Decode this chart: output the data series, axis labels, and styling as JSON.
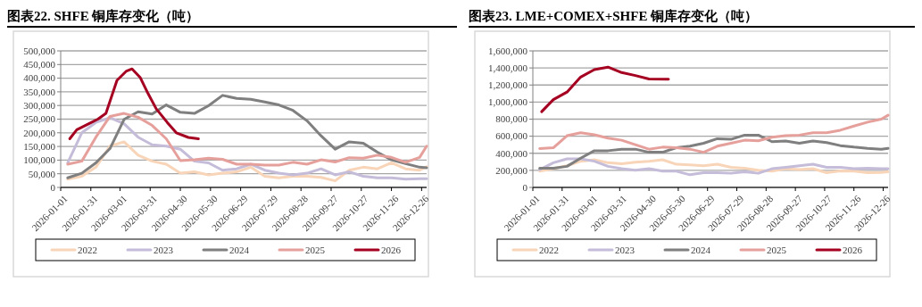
{
  "chart_data": [
    {
      "type": "line",
      "title": "图表22.  SHFE 铜库存变化（吨）",
      "grid": "y",
      "legend": "bottom",
      "line_style": "solid",
      "x": [
        "2026-01-08",
        "2026-01-22",
        "2026-02-05",
        "2026-02-19",
        "2026-03-05",
        "2026-03-19",
        "2026-04-02",
        "2026-04-16",
        "2026-04-30",
        "2026-05-14",
        "2026-05-28",
        "2026-06-11",
        "2026-06-25",
        "2026-07-09",
        "2026-07-23",
        "2026-08-06",
        "2026-08-20",
        "2026-09-03",
        "2026-09-17",
        "2026-10-01",
        "2026-10-15",
        "2026-10-29",
        "2026-11-12",
        "2026-11-26",
        "2026-12-10",
        "2026-12-24",
        "2026-12-31"
      ],
      "xlim": [
        "2026-01-01",
        "2026-12-31"
      ],
      "xticks": [
        "2026-01-01",
        "2026-01-31",
        "2026-03-01",
        "2026-03-31",
        "2026-04-30",
        "2026-05-30",
        "2026-06-29",
        "2026-07-29",
        "2026-08-28",
        "2026-09-27",
        "2026-10-27",
        "2026-11-26",
        "2026-12-26"
      ],
      "ylim": [
        0,
        500000
      ],
      "yticks": [
        {
          "value": 0,
          "label": "0"
        },
        {
          "value": 50000,
          "label": "50,000"
        },
        {
          "value": 100000,
          "label": "100,000"
        },
        {
          "value": 150000,
          "label": "150,000"
        },
        {
          "value": 200000,
          "label": "200,000"
        },
        {
          "value": 250000,
          "label": "250,000"
        },
        {
          "value": 300000,
          "label": "300,000"
        },
        {
          "value": 350000,
          "label": "350,000"
        },
        {
          "value": 400000,
          "label": "400,000"
        },
        {
          "value": 450000,
          "label": "450,000"
        },
        {
          "value": 500000,
          "label": "500,000"
        }
      ],
      "series": [
        {
          "name": "2022",
          "color": "#f8d5b8",
          "values": [
            30000,
            41000,
            74000,
            151000,
            167000,
            118000,
            96000,
            85000,
            52000,
            57000,
            46000,
            52000,
            57000,
            74000,
            41000,
            35000,
            41000,
            41000,
            37000,
            24000,
            63000,
            74000,
            68000,
            90000,
            68000,
            63000,
            76000
          ]
        },
        {
          "name": "2023",
          "color": "#c4bcd8",
          "values": [
            90000,
            200000,
            238000,
            255000,
            233000,
            184000,
            156000,
            151000,
            140000,
            96000,
            90000,
            63000,
            68000,
            85000,
            63000,
            52000,
            46000,
            52000,
            68000,
            46000,
            57000,
            41000,
            35000,
            35000,
            30000,
            32000,
            32000
          ]
        },
        {
          "name": "2024",
          "color": "#7f7f7f",
          "values": [
            35000,
            52000,
            90000,
            142000,
            249000,
            277000,
            269000,
            302000,
            275000,
            271000,
            299000,
            337000,
            326000,
            323000,
            313000,
            302000,
            282000,
            244000,
            189000,
            140000,
            167000,
            162000,
            129000,
            101000,
            87000,
            74000,
            72000
          ]
        },
        {
          "name": "2025",
          "color": "#e6a09c",
          "values": [
            85000,
            96000,
            184000,
            260000,
            271000,
            257000,
            227000,
            178000,
            98000,
            101000,
            107000,
            103000,
            85000,
            85000,
            82000,
            82000,
            92000,
            85000,
            101000,
            93000,
            109000,
            107000,
            118000,
            110000,
            92000,
            110000,
            151000
          ]
        },
        {
          "name": "2026",
          "color": "#a50021",
          "x": [
            "2026-01-10",
            "2026-01-17",
            "2026-01-29",
            "2026-02-07",
            "2026-02-15",
            "2026-02-26",
            "2026-03-07",
            "2026-03-13",
            "2026-03-21",
            "2026-03-29",
            "2026-04-06",
            "2026-04-17",
            "2026-04-26",
            "2026-05-08",
            "2026-05-18"
          ],
          "values": [
            178000,
            211000,
            233000,
            250000,
            271000,
            392000,
            425000,
            434000,
            403000,
            343000,
            288000,
            238000,
            200000,
            183000,
            178000
          ]
        }
      ]
    },
    {
      "type": "line",
      "title": "图表23.  LME+COMEX+SHFE 铜库存变化（吨）",
      "grid": "y",
      "legend": "bottom",
      "line_style": "solid",
      "x": [
        "2026-01-08",
        "2026-01-22",
        "2026-02-05",
        "2026-02-19",
        "2026-03-05",
        "2026-03-19",
        "2026-04-02",
        "2026-04-16",
        "2026-04-30",
        "2026-05-14",
        "2026-05-28",
        "2026-06-11",
        "2026-06-25",
        "2026-07-09",
        "2026-07-23",
        "2026-08-06",
        "2026-08-20",
        "2026-09-03",
        "2026-09-17",
        "2026-10-01",
        "2026-10-15",
        "2026-10-29",
        "2026-11-12",
        "2026-11-26",
        "2026-12-10",
        "2026-12-24",
        "2026-12-31"
      ],
      "xlim": [
        "2026-01-01",
        "2026-12-31"
      ],
      "xticks": [
        "2026-01-01",
        "2026-01-31",
        "2026-03-01",
        "2026-03-31",
        "2026-04-30",
        "2026-05-30",
        "2026-06-29",
        "2026-07-29",
        "2026-08-28",
        "2026-09-27",
        "2026-10-27",
        "2026-11-26",
        "2026-12-26"
      ],
      "ylim": [
        0,
        1600000
      ],
      "yticks": [
        {
          "value": 0,
          "label": "0"
        },
        {
          "value": 200000,
          "label": "200,000"
        },
        {
          "value": 400000,
          "label": "400,000"
        },
        {
          "value": 600000,
          "label": "600,000"
        },
        {
          "value": 800000,
          "label": "800,000"
        },
        {
          "value": 1000000,
          "label": "1,000,000"
        },
        {
          "value": 1200000,
          "label": "1,200,000"
        },
        {
          "value": 1400000,
          "label": "1,400,000"
        },
        {
          "value": 1600000,
          "label": "1,600,000"
        }
      ],
      "series": [
        {
          "name": "2022",
          "color": "#f8d5b8",
          "values": [
            190000,
            219000,
            254000,
            307000,
            324000,
            289000,
            278000,
            296000,
            307000,
            324000,
            271000,
            264000,
            254000,
            271000,
            236000,
            226000,
            201000,
            190000,
            219000,
            208000,
            219000,
            173000,
            194000,
            190000,
            173000,
            176000,
            183000
          ]
        },
        {
          "name": "2023",
          "color": "#c4bcd8",
          "values": [
            208000,
            289000,
            335000,
            335000,
            307000,
            247000,
            219000,
            201000,
            219000,
            190000,
            190000,
            148000,
            173000,
            173000,
            166000,
            183000,
            166000,
            219000,
            236000,
            254000,
            271000,
            236000,
            236000,
            219000,
            226000,
            219000,
            219000
          ]
        },
        {
          "name": "2024",
          "color": "#7f7f7f",
          "values": [
            226000,
            226000,
            247000,
            342000,
            430000,
            430000,
            448000,
            448000,
            412000,
            412000,
            465000,
            483000,
            518000,
            571000,
            564000,
            613000,
            613000,
            536000,
            543000,
            518000,
            543000,
            525000,
            490000,
            472000,
            458000,
            448000,
            458000
          ]
        },
        {
          "name": "2025",
          "color": "#e6a09c",
          "values": [
            455000,
            465000,
            606000,
            641000,
            617000,
            578000,
            553000,
            500000,
            448000,
            472000,
            465000,
            448000,
            412000,
            483000,
            518000,
            553000,
            546000,
            589000,
            606000,
            613000,
            641000,
            641000,
            670000,
            719000,
            765000,
            800000,
            846000
          ]
        },
        {
          "name": "2026",
          "color": "#a50021",
          "x": [
            "2026-01-10",
            "2026-01-22",
            "2026-02-05",
            "2026-02-19",
            "2026-03-05",
            "2026-03-19",
            "2026-04-02",
            "2026-04-16",
            "2026-04-30",
            "2026-05-20"
          ],
          "values": [
            888000,
            1029000,
            1117000,
            1293000,
            1381000,
            1410000,
            1346000,
            1311000,
            1270000,
            1269000
          ]
        }
      ]
    }
  ]
}
